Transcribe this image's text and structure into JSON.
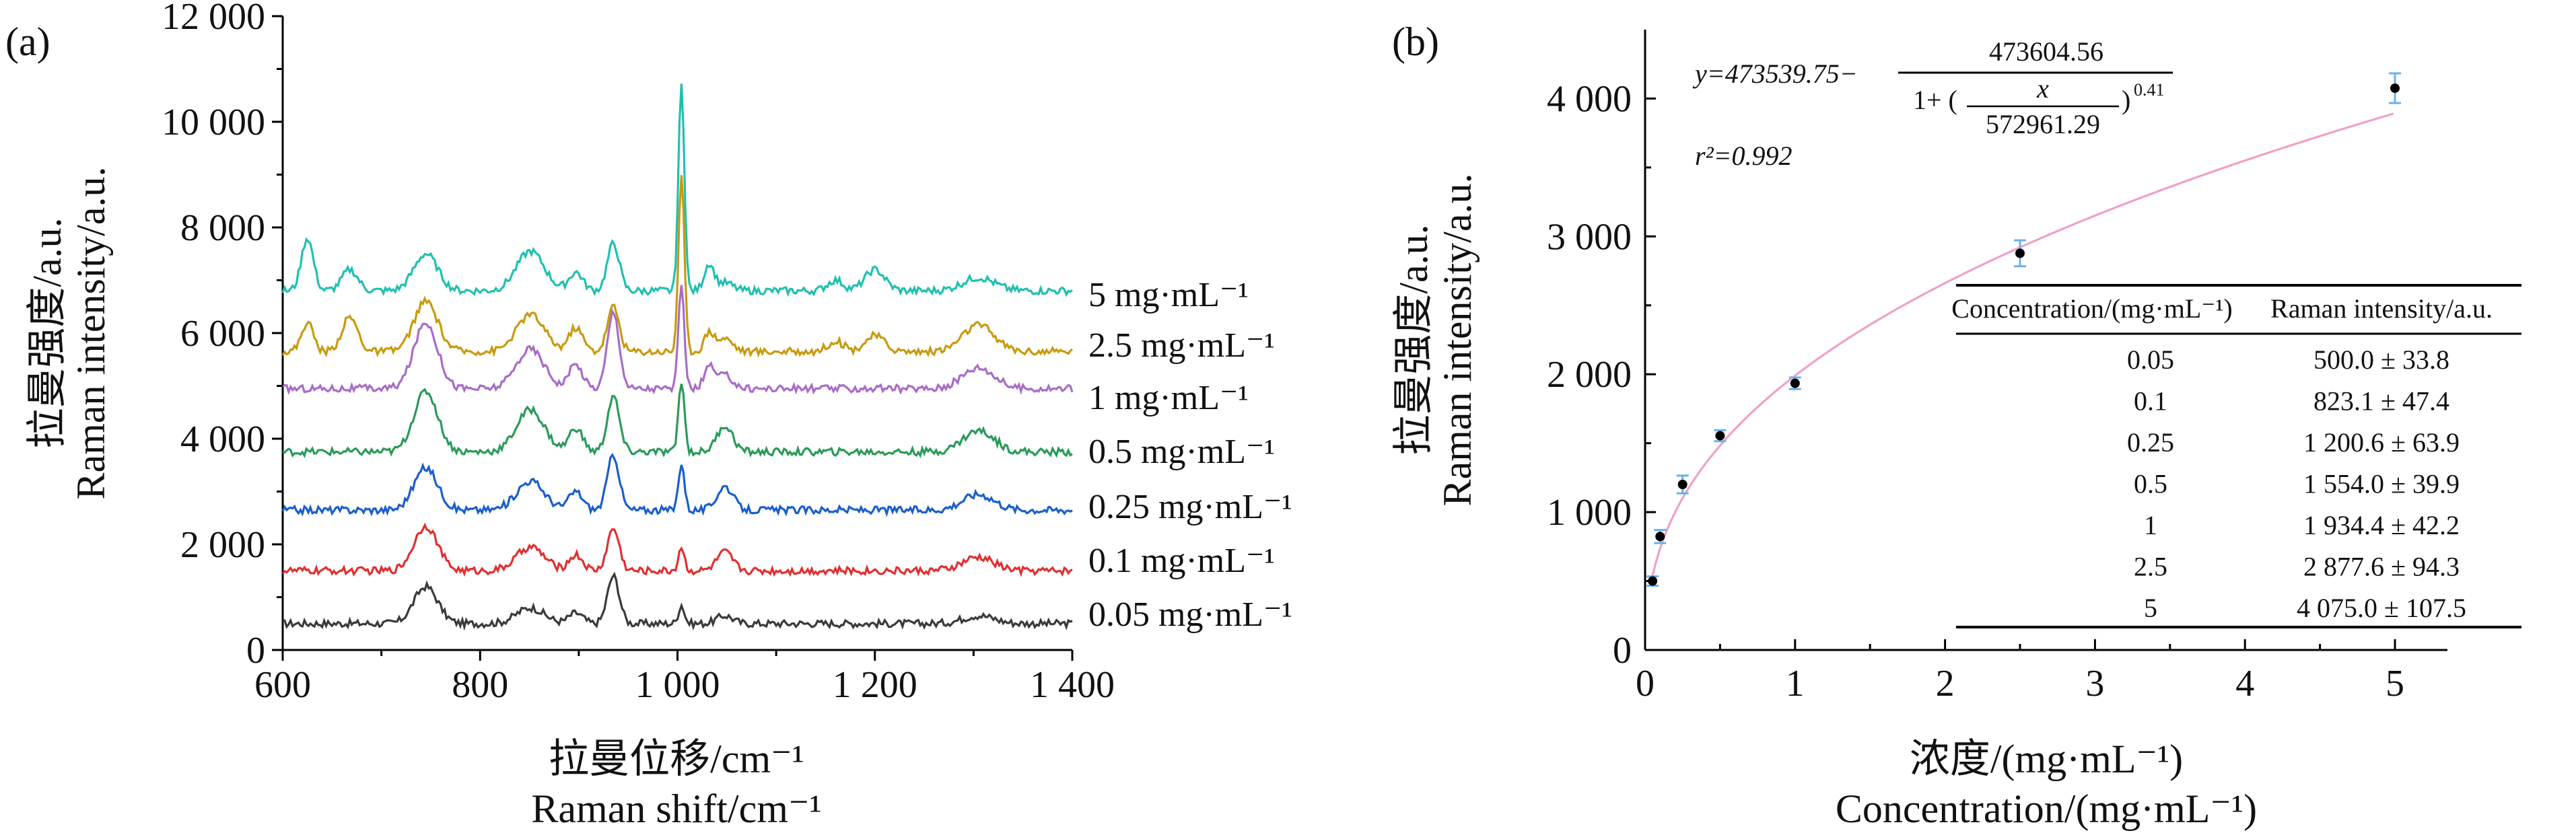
{
  "figure": {
    "panel_a": {
      "label": "(a)",
      "xlabel_cn": "拉曼位移/cm⁻¹",
      "xlabel_en": "Raman shift/cm⁻¹",
      "ylabel_cn": "拉曼强度/a.u.",
      "ylabel_en": "Raman intensity/a.u."
    },
    "panel_b": {
      "label": "(b)",
      "xlabel_cn": "浓度/(mg·mL⁻¹)",
      "xlabel_en": "Concentration/(mg·mL⁻¹)",
      "ylabel_cn": "拉曼强度/a.u.",
      "ylabel_en": "Raman intensity/a.u.",
      "equation": {
        "y_part": "y=473539.75−",
        "numerator": "473604.56",
        "denom_prefix": "1+ (",
        "frac_num": "x",
        "frac_den": "572961.29",
        "exponent": "0.41",
        "r2_label": "r²=0.992"
      },
      "table": {
        "headers": [
          "Concentration/(mg·mL⁻¹)",
          "Raman intensity/a.u."
        ],
        "rows": [
          [
            "0.05",
            "500.0 ± 33.8"
          ],
          [
            "0.1",
            "823.1 ± 47.4"
          ],
          [
            "0.25",
            "1 200.6 ± 63.9"
          ],
          [
            "0.5",
            "1 554.0 ± 39.9"
          ],
          [
            "1",
            "1 934.4 ± 42.2"
          ],
          [
            "2.5",
            "2 877.6 ± 94.3"
          ],
          [
            "5",
            "4 075.0 ± 107.5"
          ]
        ]
      }
    }
  },
  "colors": {
    "s_005": "#3a3a3a",
    "s_01": "#e03030",
    "s_025": "#1a5fcc",
    "s_05": "#2a9a5a",
    "s_1": "#a86cc8",
    "s_25": "#c89a10",
    "s_5": "#20c0b0",
    "fit": "#f0a0c8",
    "errorbar": "#6ab0e8"
  },
  "chart_data": [
    {
      "type": "line",
      "panel": "a",
      "xlim": [
        600,
        1400
      ],
      "ylim": [
        0,
        12000
      ],
      "x_ticks": [
        600,
        800,
        1000,
        1200,
        1400
      ],
      "x_tick_labels": [
        "600",
        "800",
        "1 000",
        "1 200",
        "1 400"
      ],
      "y_ticks": [
        0,
        2000,
        4000,
        6000,
        8000,
        10000,
        12000
      ],
      "y_tick_labels": [
        "0",
        "2 000",
        "4 000",
        "6 000",
        "8 000",
        "10 000",
        "12 000"
      ],
      "peaks": [
        {
          "x": 625,
          "w": 6
        },
        {
          "x": 668,
          "w": 8
        },
        {
          "x": 745,
          "w": 12
        },
        {
          "x": 851,
          "w": 14
        },
        {
          "x": 897,
          "w": 7
        },
        {
          "x": 935,
          "w": 6
        },
        {
          "x": 1004,
          "w": 3
        },
        {
          "x": 1032,
          "w": 5
        },
        {
          "x": 1048,
          "w": 8
        },
        {
          "x": 1160,
          "w": 8
        },
        {
          "x": 1200,
          "w": 10
        },
        {
          "x": 1305,
          "w": 16
        }
      ],
      "series": [
        {
          "name": "0.05 mg·mL⁻¹",
          "color_key": "s_005",
          "baseline": 500,
          "amps": [
            0,
            0,
            700,
            300,
            200,
            900,
            350,
            0,
            150,
            0,
            0,
            150
          ]
        },
        {
          "name": "0.1 mg·mL⁻¹",
          "color_key": "s_01",
          "baseline": 1500,
          "amps": [
            0,
            0,
            850,
            450,
            300,
            800,
            450,
            0,
            350,
            0,
            0,
            250
          ]
        },
        {
          "name": "0.25 mg·mL⁻¹",
          "color_key": "s_025",
          "baseline": 2650,
          "amps": [
            0,
            0,
            800,
            550,
            350,
            1050,
            900,
            0,
            450,
            0,
            0,
            300
          ]
        },
        {
          "name": "0.5 mg·mL⁻¹",
          "color_key": "s_05",
          "baseline": 3750,
          "amps": [
            0,
            0,
            1150,
            800,
            450,
            1050,
            1350,
            0,
            500,
            0,
            0,
            400
          ]
        },
        {
          "name": "1 mg·mL⁻¹",
          "color_key": "s_1",
          "baseline": 4950,
          "amps": [
            0,
            0,
            1250,
            750,
            450,
            1450,
            1900,
            400,
            250,
            0,
            0,
            400
          ]
        },
        {
          "name": "2.5 mg·mL⁻¹",
          "color_key": "s_25",
          "baseline": 5650,
          "amps": [
            550,
            650,
            950,
            700,
            450,
            850,
            3300,
            350,
            250,
            200,
            300,
            500
          ]
        },
        {
          "name": "5 mg·mL⁻¹",
          "color_key": "s_5",
          "baseline": 6800,
          "amps": [
            1000,
            400,
            700,
            750,
            350,
            900,
            3900,
            500,
            150,
            200,
            400,
            250
          ]
        }
      ]
    },
    {
      "type": "scatter",
      "panel": "b",
      "xlim": [
        0,
        5.35
      ],
      "ylim": [
        0,
        4500
      ],
      "x_ticks": [
        0,
        1,
        2,
        3,
        4,
        5
      ],
      "x_tick_labels": [
        "0",
        "1",
        "2",
        "3",
        "4",
        "5"
      ],
      "y_ticks": [
        0,
        1000,
        2000,
        3000,
        4000
      ],
      "y_tick_labels": [
        "0",
        "1 000",
        "2 000",
        "3 000",
        "4 000"
      ],
      "x": [
        0.05,
        0.1,
        0.25,
        0.5,
        1,
        2.5,
        5
      ],
      "y": [
        500.0,
        823.1,
        1200.6,
        1554.0,
        1934.4,
        2877.6,
        4075.0
      ],
      "y_err": [
        33.8,
        47.4,
        63.9,
        39.9,
        42.2,
        94.3,
        107.5
      ],
      "fit": {
        "A": 473539.75,
        "B": 473604.56,
        "C": 572961.29,
        "n": 0.41
      }
    }
  ]
}
